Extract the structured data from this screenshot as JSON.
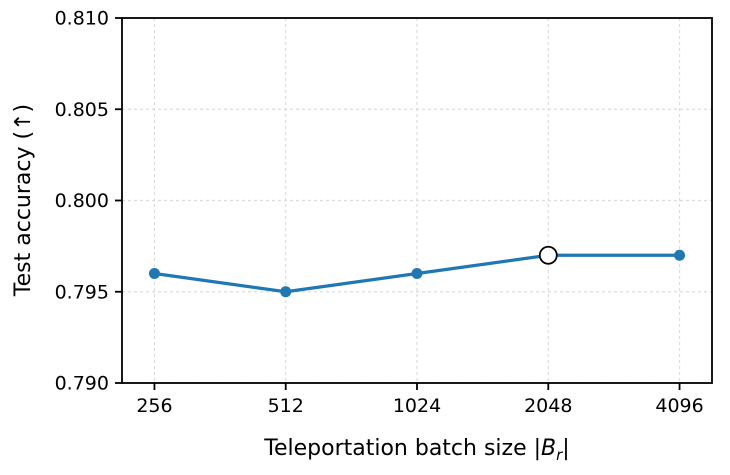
{
  "figure": {
    "background_color": "#ffffff"
  },
  "chart_data": {
    "type": "line",
    "title": "",
    "categories": [
      "256",
      "512",
      "1024",
      "2048",
      "4096"
    ],
    "values": [
      0.796,
      0.795,
      0.796,
      0.797,
      0.797
    ],
    "highlight": {
      "category": "2048",
      "index": 3,
      "marker": "open-circle",
      "fill": "#ffffff",
      "edge": "#000000"
    },
    "xlabel_parts": {
      "prefix": "Teleportation batch size |",
      "var": "B",
      "sub": "r",
      "suffix": "|"
    },
    "ylabel": "Test accuracy (↑)",
    "ylim": [
      0.79,
      0.81
    ],
    "yticks": [
      0.79,
      0.795,
      0.8,
      0.805,
      0.81
    ],
    "ytick_labels": [
      "0.790",
      "0.795",
      "0.800",
      "0.805",
      "0.810"
    ],
    "grid": true,
    "grid_style": "dashed",
    "legend_position": "none",
    "line_color": "#1f77b4",
    "marker": "circle",
    "axis_color": "#000000",
    "grid_color": "#dcdcdc"
  }
}
